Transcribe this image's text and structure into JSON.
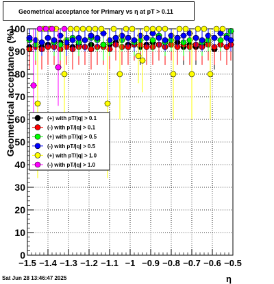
{
  "footer": {
    "timestamp": "Sat Jun 28 13:46:47 2025"
  },
  "chart_data": {
    "type": "scatter",
    "title": "Geometrical acceptance for Primary vs    η  at pT > 0.11",
    "xlabel": "η",
    "ylabel": "Geometrical acceptance (%)",
    "xlim": [
      -1.5,
      -0.5
    ],
    "ylim": [
      0,
      100
    ],
    "xticks": [
      -1.5,
      -1.4,
      -1.3,
      -1.2,
      -1.1,
      -1.0,
      -0.9,
      -0.8,
      -0.7,
      -0.6,
      -0.5
    ],
    "xtick_labels": [
      "−1.5",
      "−1.4",
      "−1.3",
      "−1.2",
      "−1.1",
      "−1",
      "−0.9",
      "−0.8",
      "−0.7",
      "−0.6",
      "−0.5"
    ],
    "yticks": [
      0,
      10,
      20,
      30,
      40,
      50,
      60,
      70,
      80,
      90,
      100
    ],
    "grid": true,
    "legend_position": "left",
    "series": [
      {
        "name": "(+) with pT/|q| > 0.1",
        "color": "#000000",
        "x": [
          -1.49,
          -1.46,
          -1.43,
          -1.4,
          -1.37,
          -1.34,
          -1.31,
          -1.28,
          -1.25,
          -1.22,
          -1.19,
          -1.16,
          -1.13,
          -1.1,
          -1.07,
          -1.04,
          -1.01,
          -0.98,
          -0.95,
          -0.92,
          -0.89,
          -0.86,
          -0.83,
          -0.8,
          -0.77,
          -0.74,
          -0.71,
          -0.68,
          -0.65,
          -0.62,
          -0.59,
          -0.56,
          -0.53,
          -0.51
        ],
        "y": [
          92,
          93,
          92,
          93,
          92,
          94,
          93,
          92,
          93,
          92,
          93,
          92,
          93,
          93,
          94,
          92,
          93,
          93,
          92,
          93,
          94,
          93,
          92,
          93,
          94,
          92,
          93,
          92,
          93,
          94,
          91,
          93,
          92,
          93
        ]
      },
      {
        "name": "(-) with pT/|q| > 0.1",
        "color": "#ff0000",
        "x": [
          -1.49,
          -1.46,
          -1.43,
          -1.4,
          -1.37,
          -1.34,
          -1.31,
          -1.28,
          -1.25,
          -1.22,
          -1.19,
          -1.16,
          -1.13,
          -1.1,
          -1.07,
          -1.04,
          -1.01,
          -0.98,
          -0.95,
          -0.92,
          -0.89,
          -0.86,
          -0.83,
          -0.8,
          -0.77,
          -0.74,
          -0.71,
          -0.68,
          -0.65,
          -0.62,
          -0.59,
          -0.56,
          -0.53,
          -0.51
        ],
        "y": [
          91,
          92,
          91,
          92,
          92,
          91,
          92,
          91,
          92,
          92,
          91,
          92,
          92,
          91,
          93,
          92,
          92,
          93,
          93,
          92,
          92,
          93,
          92,
          93,
          92,
          93,
          92,
          93,
          92,
          93,
          92,
          93,
          92,
          93
        ]
      },
      {
        "name": "(+) with pT/|q| > 0.5",
        "color": "#00ff00",
        "x": [
          -1.49,
          -1.46,
          -1.43,
          -1.4,
          -1.37,
          -1.34,
          -1.31,
          -1.28,
          -1.25,
          -1.22,
          -1.19,
          -1.16,
          -1.13,
          -1.1,
          -1.07,
          -1.04,
          -1.01,
          -0.98,
          -0.95,
          -0.92,
          -0.89,
          -0.86,
          -0.83,
          -0.8,
          -0.77,
          -0.74,
          -0.71,
          -0.68,
          -0.65,
          -0.62,
          -0.59,
          -0.56,
          -0.53,
          -0.51
        ],
        "y": [
          95,
          93,
          94,
          96,
          94,
          93,
          95,
          96,
          94,
          95,
          96,
          95,
          93,
          94,
          96,
          95,
          96,
          94,
          95,
          96,
          95,
          97,
          94,
          95,
          96,
          94,
          95,
          96,
          94,
          95,
          96,
          95,
          97,
          99
        ]
      },
      {
        "name": "(-) with pT/|q| > 0.5",
        "color": "#0000ff",
        "x": [
          -1.49,
          -1.46,
          -1.43,
          -1.4,
          -1.37,
          -1.34,
          -1.31,
          -1.28,
          -1.25,
          -1.22,
          -1.19,
          -1.16,
          -1.13,
          -1.1,
          -1.07,
          -1.04,
          -1.01,
          -0.98,
          -0.95,
          -0.92,
          -0.89,
          -0.86,
          -0.83,
          -0.8,
          -0.77,
          -0.74,
          -0.71,
          -0.68,
          -0.65,
          -0.62,
          -0.59,
          -0.56,
          -0.53,
          -0.51
        ],
        "y": [
          96,
          95,
          94,
          96,
          95,
          97,
          94,
          95,
          96,
          95,
          97,
          96,
          98,
          95,
          96,
          97,
          96,
          95,
          97,
          96,
          98,
          96,
          95,
          97,
          96,
          97,
          98,
          96,
          95,
          97,
          96,
          98,
          96,
          95
        ]
      },
      {
        "name": "(+) with pT/|q| > 1.0",
        "color": "#ffff00",
        "x": [
          -1.45,
          -1.42,
          -1.39,
          -1.36,
          -1.32,
          -1.29,
          -1.26,
          -1.23,
          -1.2,
          -1.17,
          -1.14,
          -1.11,
          -1.08,
          -1.05,
          -1.02,
          -0.99,
          -0.96,
          -0.94,
          -0.92,
          -0.89,
          -0.86,
          -0.83,
          -0.79,
          -0.76,
          -0.73,
          -0.7,
          -0.67,
          -0.64,
          -0.61,
          -0.58,
          -0.55
        ],
        "y": [
          67,
          100,
          100,
          100,
          80,
          100,
          100,
          100,
          100,
          100,
          100,
          67,
          100,
          80,
          100,
          100,
          88,
          86,
          100,
          100,
          100,
          100,
          80,
          100,
          100,
          80,
          100,
          100,
          80,
          100,
          100
        ]
      },
      {
        "name": "(-) with pT/|q| > 1.0",
        "color": "#ff00ff",
        "x": [
          -1.47,
          -1.44,
          -1.41,
          -1.38,
          -1.35,
          -1.32
        ],
        "y": [
          75,
          100,
          100,
          100,
          83,
          100
        ]
      }
    ]
  }
}
